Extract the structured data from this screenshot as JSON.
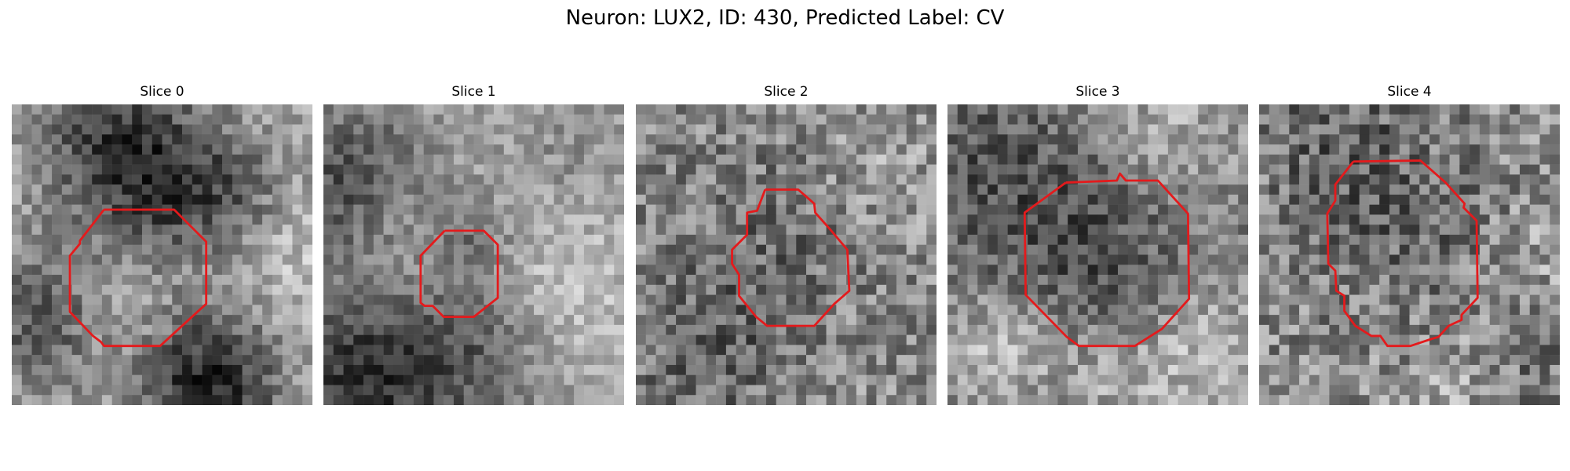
{
  "figure": {
    "title": "Neuron: LUX2, ID: 430, Predicted Label: CV"
  },
  "colors": {
    "contour": "#e41a1c",
    "background": "#ffffff"
  },
  "panels": [
    {
      "title": "Slice 0"
    },
    {
      "title": "Slice 1"
    },
    {
      "title": "Slice 2"
    },
    {
      "title": "Slice 3"
    },
    {
      "title": "Slice 4"
    }
  ]
}
